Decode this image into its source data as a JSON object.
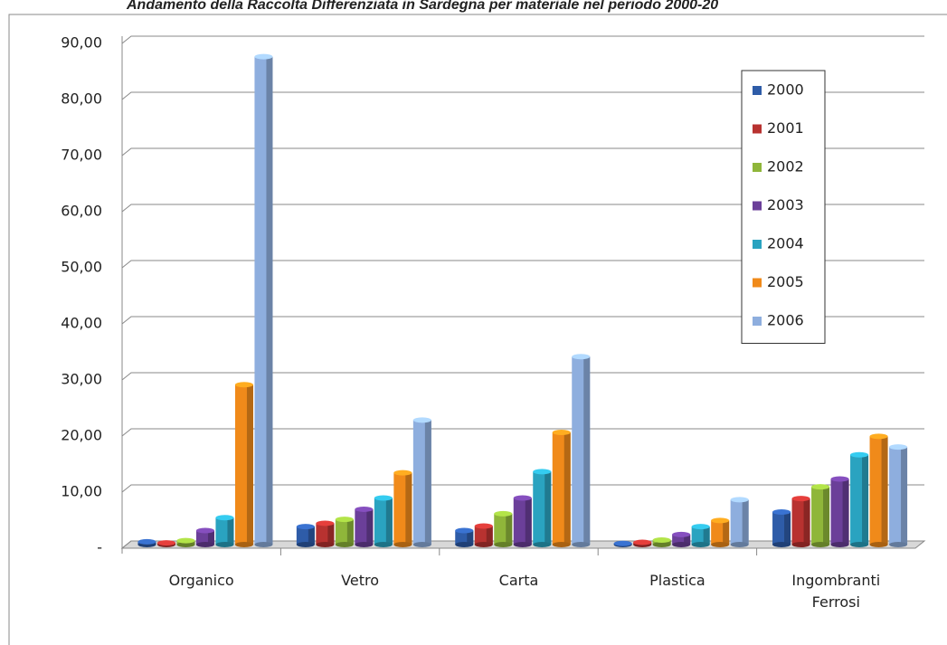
{
  "chart_data": {
    "type": "bar",
    "title": "Andamento della Raccolta Differenziata in Sardegna per materiale nel periodo 2000-20",
    "categories": [
      "Organico",
      "Vetro",
      "Carta",
      "Plastica",
      "Ingombranti Ferrosi"
    ],
    "series": [
      {
        "name": "2000",
        "color": "#2e5ca8",
        "values": [
          0.5,
          3.2,
          2.5,
          0.2,
          5.8
        ]
      },
      {
        "name": "2001",
        "color": "#b83230",
        "values": [
          0.3,
          3.8,
          3.3,
          0.4,
          8.2
        ]
      },
      {
        "name": "2002",
        "color": "#8fb63a",
        "values": [
          0.7,
          4.5,
          5.5,
          0.8,
          10.3
        ]
      },
      {
        "name": "2003",
        "color": "#6b3f99",
        "values": [
          2.5,
          6.3,
          8.3,
          1.8,
          11.7
        ]
      },
      {
        "name": "2004",
        "color": "#2aa3c0",
        "values": [
          4.8,
          8.3,
          13,
          3.2,
          16
        ]
      },
      {
        "name": "2005",
        "color": "#f08a1a",
        "values": [
          28.5,
          12.8,
          20,
          4.3,
          19.3
        ]
      },
      {
        "name": "2006",
        "color": "#8eaede",
        "values": [
          87,
          22.2,
          33.5,
          8,
          17.4
        ]
      }
    ],
    "ylim": [
      0,
      90
    ],
    "yticks": [
      {
        "value": 0,
        "label": "-"
      },
      {
        "value": 10,
        "label": "10,00"
      },
      {
        "value": 20,
        "label": "20,00"
      },
      {
        "value": 30,
        "label": "30,00"
      },
      {
        "value": 40,
        "label": "40,00"
      },
      {
        "value": 50,
        "label": "50,00"
      },
      {
        "value": 60,
        "label": "60,00"
      },
      {
        "value": 70,
        "label": "70,00"
      },
      {
        "value": 80,
        "label": "80,00"
      },
      {
        "value": 90,
        "label": "90,00"
      }
    ],
    "grid": true,
    "legend": "right"
  }
}
